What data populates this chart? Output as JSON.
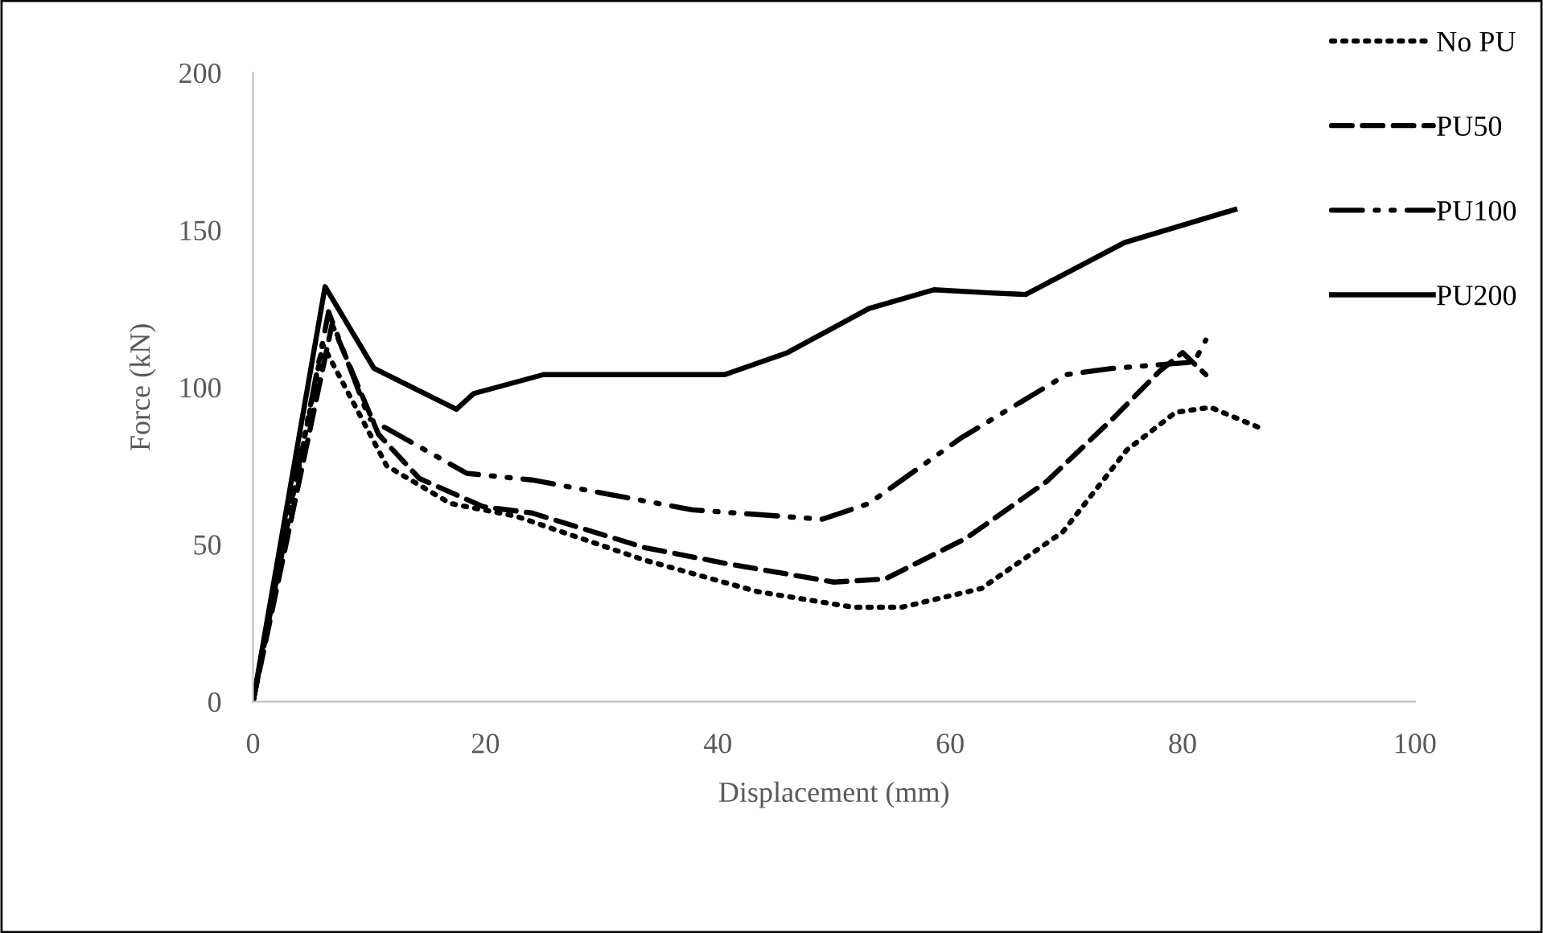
{
  "chart_data": {
    "type": "line",
    "xlabel": "Displacement (mm)",
    "ylabel": "Force (kN)",
    "xlim": [
      0,
      100
    ],
    "xticks": [
      0,
      20,
      40,
      60,
      80,
      100
    ],
    "ylim": [
      0,
      200
    ],
    "yticks": [
      0,
      50,
      100,
      150,
      200
    ],
    "grid": false,
    "legend": "top right",
    "marker": "none",
    "series": [
      {
        "name": "No PU",
        "color": "#000000",
        "line_style": "dotted",
        "x": [
          0,
          6,
          11.5,
          17,
          22.6,
          33.7,
          43.4,
          51.7,
          55.8,
          62.7,
          69.7,
          75.2,
          79.4,
          82.4,
          86.7
        ],
        "values": [
          0,
          113.5,
          75,
          63,
          59,
          45,
          35,
          30,
          30,
          36,
          54,
          80,
          92,
          93.6,
          87
        ]
      },
      {
        "name": "PU50",
        "color": "#000000",
        "line_style": "dashed",
        "x": [
          0,
          6.8,
          10.8,
          14.3,
          19.8,
          24,
          33.7,
          40.6,
          50,
          54.4,
          61.4,
          68.3,
          74,
          78,
          80,
          82
        ],
        "values": [
          0,
          120,
          85,
          71,
          62,
          60,
          49,
          44,
          38,
          39,
          52,
          70,
          90,
          105,
          111,
          104
        ]
      },
      {
        "name": "PU100",
        "color": "#000000",
        "line_style": "dashdot",
        "x": [
          0,
          6.5,
          10,
          18.4,
          24,
          37.8,
          49,
          53,
          61,
          70,
          74,
          81,
          82
        ],
        "values": [
          0,
          124,
          90,
          72.6,
          70.5,
          61,
          58,
          63,
          84,
          104,
          106,
          108,
          115
        ]
      },
      {
        "name": "PU200",
        "color": "#000000",
        "line_style": "solid",
        "x": [
          0,
          6.2,
          10.4,
          17.5,
          19,
          25,
          40.6,
          46,
          53,
          58.6,
          63.4,
          66.5,
          75,
          84.5
        ],
        "values": [
          0,
          132,
          106,
          93,
          98,
          104,
          104,
          111,
          125,
          131,
          130,
          129.5,
          146,
          156.5
        ]
      }
    ]
  }
}
